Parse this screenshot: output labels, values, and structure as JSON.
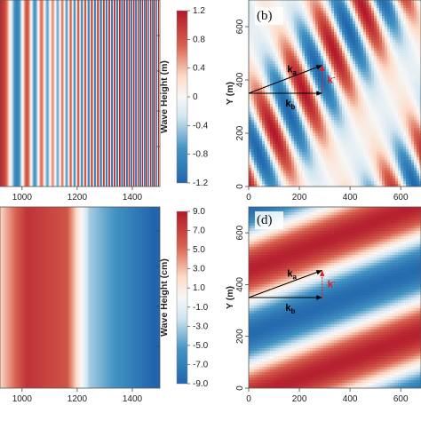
{
  "chart_data": [
    {
      "panel": "a",
      "type": "heatmap",
      "pattern": "vertical stripes, wavelength decreasing with x",
      "x_ticks": [
        "1000",
        "1200",
        "1400"
      ],
      "xlim": [
        920,
        1500
      ]
    },
    {
      "type": "colorbar",
      "label": "Wave Height (m)",
      "ticks": [
        "1.2",
        "0.8",
        "0.4",
        "0",
        "-0.4",
        "-0.8",
        "-1.2"
      ],
      "range": [
        -1.2,
        1.2
      ],
      "colormap": [
        "#2166ac",
        "#f7f7f7",
        "#b2182b"
      ]
    },
    {
      "panel": "b",
      "panel_label": "(b)",
      "type": "heatmap",
      "ylabel": "Y (m)",
      "x_ticks": [
        "0",
        "200",
        "400",
        "600"
      ],
      "y_ticks": [
        "0",
        "200",
        "400",
        "600"
      ],
      "xlim": [
        0,
        680
      ],
      "ylim": [
        0,
        700
      ],
      "wave_vectors": [
        {
          "label": "k",
          "sub": "a",
          "color": "#000000",
          "from": [
            0,
            350
          ],
          "to": [
            290,
            455
          ]
        },
        {
          "label": "k",
          "sub": "b",
          "color": "#000000",
          "from": [
            0,
            350
          ],
          "to": [
            290,
            350
          ]
        },
        {
          "label": "k",
          "sup": "-",
          "color": "#e41a1c",
          "from": [
            290,
            350
          ],
          "to": [
            290,
            455
          ]
        }
      ]
    },
    {
      "panel": "c",
      "type": "heatmap",
      "pattern": "broad vertical bands, red left to blue right",
      "x_ticks": [
        "1000",
        "1200",
        "1400"
      ],
      "xlim": [
        920,
        1500
      ]
    },
    {
      "type": "colorbar",
      "label": "Wave Height (cm)",
      "ticks": [
        "9.0",
        "7.0",
        "5.0",
        "3.0",
        "1.0",
        "-1.0",
        "-3.0",
        "-5.0",
        "-7.0",
        "-9.0"
      ],
      "range": [
        -9,
        9
      ],
      "colormap": [
        "#2166ac",
        "#f7f7f7",
        "#b2182b"
      ]
    },
    {
      "panel": "d",
      "panel_label": "(d)",
      "type": "heatmap",
      "ylabel": "Y (m)",
      "x_ticks": [
        "0",
        "200",
        "400",
        "600"
      ],
      "y_ticks": [
        "0",
        "200",
        "400",
        "600"
      ],
      "xlim": [
        0,
        680
      ],
      "ylim": [
        0,
        700
      ],
      "wave_vectors": [
        {
          "label": "k",
          "sub": "a",
          "color": "#000000",
          "from": [
            0,
            350
          ],
          "to": [
            290,
            455
          ]
        },
        {
          "label": "k",
          "sub": "b",
          "color": "#000000",
          "from": [
            0,
            350
          ],
          "to": [
            290,
            350
          ]
        },
        {
          "label": "k",
          "sup": "-",
          "color": "#e41a1c",
          "from": [
            290,
            350
          ],
          "to": [
            290,
            455
          ]
        }
      ]
    }
  ]
}
